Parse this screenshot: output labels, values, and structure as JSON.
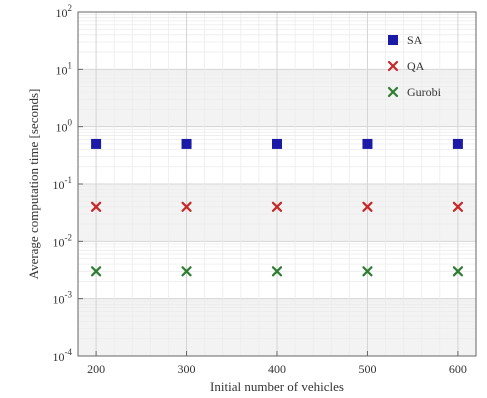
{
  "chart_data": {
    "type": "scatter",
    "title": "",
    "xlabel": "Initial number of vehicles",
    "ylabel": "Average computation time [seconds]",
    "x": [
      200,
      300,
      400,
      500,
      600
    ],
    "x_tick_labels": [
      "200",
      "300",
      "400",
      "500",
      "600"
    ],
    "yscale": "log",
    "ylim": [
      0.0001,
      100
    ],
    "y_tick_labels": [
      {
        "value": 0.0001,
        "base": "10",
        "exp": "-4"
      },
      {
        "value": 0.001,
        "base": "10",
        "exp": "-3"
      },
      {
        "value": 0.01,
        "base": "10",
        "exp": "-2"
      },
      {
        "value": 0.1,
        "base": "10",
        "exp": "-1"
      },
      {
        "value": 1,
        "base": "10",
        "exp": "0"
      },
      {
        "value": 10,
        "base": "10",
        "exp": "1"
      },
      {
        "value": 100,
        "base": "10",
        "exp": "2"
      }
    ],
    "grid": true,
    "legend_position": "top-right",
    "series": [
      {
        "name": "SA",
        "color": "#1a1aa6",
        "marker": "square",
        "values": [
          0.5,
          0.5,
          0.5,
          0.5,
          0.5
        ]
      },
      {
        "name": "QA",
        "color": "#c62828",
        "marker": "x",
        "values": [
          0.04,
          0.04,
          0.04,
          0.04,
          0.04
        ]
      },
      {
        "name": "Gurobi",
        "color": "#2e7d32",
        "marker": "x",
        "values": [
          0.003,
          0.003,
          0.003,
          0.003,
          0.003
        ]
      }
    ]
  }
}
